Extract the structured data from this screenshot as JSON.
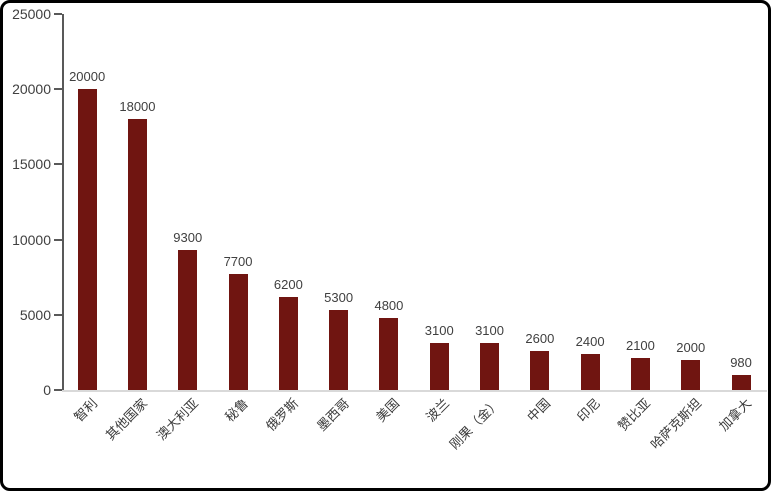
{
  "chart_data": {
    "type": "bar",
    "categories": [
      "智利",
      "其他国家",
      "澳大利亚",
      "秘鲁",
      "俄罗斯",
      "墨西哥",
      "美国",
      "波兰",
      "刚果（金）",
      "中国",
      "印尼",
      "赞比亚",
      "哈萨克斯坦",
      "加拿大"
    ],
    "values": [
      20000,
      18000,
      9300,
      7700,
      6200,
      5300,
      4800,
      3100,
      3100,
      2600,
      2400,
      2100,
      2000,
      980
    ],
    "data_labels": [
      "20000",
      "18000",
      "9300",
      "7700",
      "6200",
      "5300",
      "4800",
      "3100",
      "3100",
      "2600",
      "2400",
      "2100",
      "2000",
      "980"
    ],
    "title": "",
    "xlabel": "",
    "ylabel": "",
    "ylim": [
      0,
      25000
    ],
    "yticks": [
      0,
      5000,
      10000,
      15000,
      20000,
      25000
    ],
    "ytick_labels": [
      "0",
      "5000",
      "10000",
      "15000",
      "20000",
      "25000"
    ],
    "grid": false,
    "legend": false,
    "x_label_rotation_deg": 45,
    "colors": {
      "bar": "#701511",
      "value_label": "#404040",
      "y_tick_label": "#404040",
      "x_tick_label": "#3a3a3a",
      "y_axis_line": "#595959",
      "x_baseline": "#d9d9d9",
      "background": "#ffffff",
      "frame_border": "#000000"
    }
  }
}
